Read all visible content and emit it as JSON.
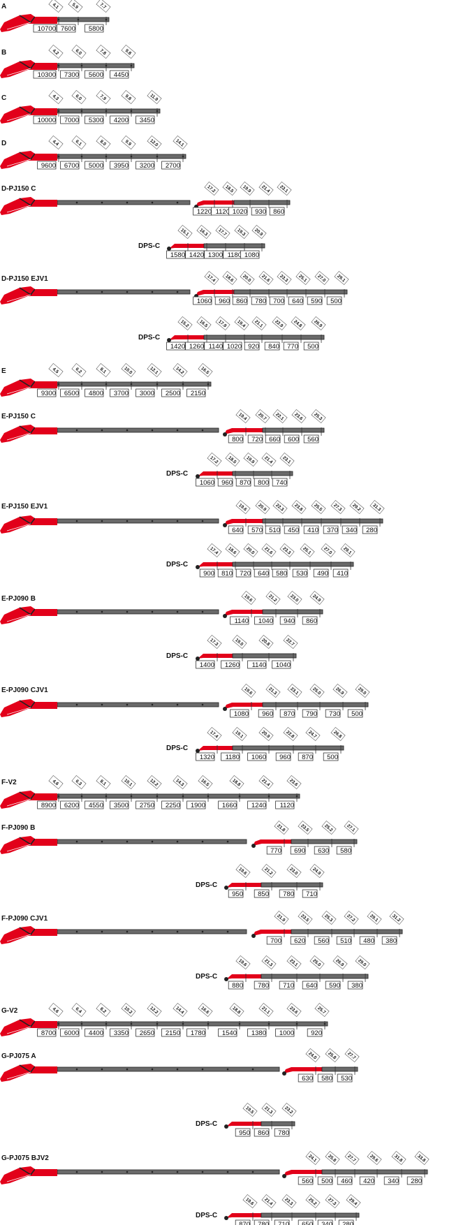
{
  "colors": {
    "boom_red": "#e2001a",
    "boom_dark": "#222222",
    "boom_grey": "#6a6a6a",
    "boom_light": "#dcdcdc",
    "tick": "#333333"
  },
  "diagrams": [
    {
      "id": "A",
      "label": "A",
      "kind": "main",
      "reach": [
        "4.1",
        "5.9",
        "7.7"
      ],
      "load": [
        "10700",
        "7600",
        "5800"
      ]
    },
    {
      "id": "B",
      "label": "B",
      "kind": "main",
      "reach": [
        "4.2",
        "6.0",
        "7.8",
        "9.8"
      ],
      "load": [
        "10300",
        "7300",
        "5600",
        "4450"
      ]
    },
    {
      "id": "C",
      "label": "C",
      "kind": "main",
      "reach": [
        "4.3",
        "6.0",
        "7.9",
        "9.8",
        "11.9"
      ],
      "load": [
        "10000",
        "7000",
        "5300",
        "4200",
        "3450"
      ]
    },
    {
      "id": "D",
      "label": "D",
      "kind": "main",
      "reach": [
        "4.4",
        "6.1",
        "8.0",
        "9.9",
        "12.0",
        "14.1"
      ],
      "load": [
        "9600",
        "6700",
        "5000",
        "3950",
        "3200",
        "2700"
      ]
    },
    {
      "id": "D-PJ150 C",
      "label": "D-PJ150 C",
      "kind": "jib",
      "reach": [
        "17.2",
        "18.5",
        "19.9",
        "21.4",
        "23.1"
      ],
      "load": [
        "1220",
        "1120",
        "1020",
        "930",
        "860"
      ]
    },
    {
      "id": "D-PJ150 C DPS-C",
      "label": "DPS-C",
      "kind": "dps",
      "reach": [
        "15.1",
        "16.3",
        "17.7",
        "19.3",
        "20.9"
      ],
      "load": [
        "1580",
        "1420",
        "1300",
        "1180",
        "1080"
      ]
    },
    {
      "id": "D-PJ150 EJV1",
      "label": "D-PJ150 EJV1",
      "kind": "jib",
      "reach": [
        "17.4",
        "18.6",
        "20.0",
        "21.6",
        "23.3",
        "25.1",
        "27.0",
        "29.1"
      ],
      "load": [
        "1060",
        "960",
        "860",
        "780",
        "700",
        "640",
        "590",
        "500"
      ]
    },
    {
      "id": "D-PJ150 EJV1 DPS-C",
      "label": "DPS-C",
      "kind": "dps",
      "reach": [
        "15.2",
        "16.5",
        "17.9",
        "19.4",
        "21.1",
        "22.9",
        "24.8",
        "26.9"
      ],
      "load": [
        "1420",
        "1260",
        "1140",
        "1020",
        "920",
        "840",
        "770",
        "500"
      ]
    },
    {
      "id": "E",
      "label": "E",
      "kind": "main",
      "reach": [
        "4.5",
        "6.2",
        "8.1",
        "10.0",
        "12.1",
        "14.2",
        "16.5"
      ],
      "load": [
        "9300",
        "6500",
        "4800",
        "3700",
        "3000",
        "2500",
        "2150"
      ]
    },
    {
      "id": "E-PJ150 C",
      "label": "E-PJ150 C",
      "kind": "jib",
      "reach": [
        "19.4",
        "20.7",
        "22.1",
        "23.6",
        "25.3"
      ],
      "load": [
        "800",
        "720",
        "660",
        "600",
        "560"
      ]
    },
    {
      "id": "E-PJ150 C DPS-C",
      "label": "DPS-C",
      "kind": "dps",
      "reach": [
        "17.2",
        "18.5",
        "19.9",
        "21.4",
        "23.1"
      ],
      "load": [
        "1060",
        "960",
        "870",
        "800",
        "740"
      ]
    },
    {
      "id": "E-PJ150 EJV1",
      "label": "E-PJ150 EJV1",
      "kind": "jib",
      "reach": [
        "19.6",
        "20.9",
        "22.3",
        "23.8",
        "25.5",
        "27.3",
        "29.2",
        "31.3"
      ],
      "load": [
        "640",
        "570",
        "510",
        "450",
        "410",
        "370",
        "340",
        "280"
      ]
    },
    {
      "id": "E-PJ150 EJV1 DPS-C",
      "label": "DPS-C",
      "kind": "dps",
      "reach": [
        "17.4",
        "18.6",
        "20.0",
        "21.6",
        "23.3",
        "25.1",
        "27.0",
        "29.1"
      ],
      "load": [
        "900",
        "810",
        "720",
        "640",
        "580",
        "530",
        "490",
        "410"
      ]
    },
    {
      "id": "E-PJ090 B",
      "label": "E-PJ090 B",
      "kind": "jib",
      "reach": [
        "19.6",
        "21.2",
        "23.0",
        "24.9"
      ],
      "load": [
        "1140",
        "1040",
        "940",
        "860"
      ]
    },
    {
      "id": "E-PJ090 B DPS-C",
      "label": "DPS-C",
      "kind": "dps",
      "reach": [
        "17.3",
        "19.0",
        "20.8",
        "22.7"
      ],
      "load": [
        "1400",
        "1260",
        "1140",
        "1040"
      ]
    },
    {
      "id": "E-PJ090 CJV1",
      "label": "E-PJ090 CJV1",
      "kind": "jib",
      "reach": [
        "19.6",
        "21.3",
        "23.1",
        "25.0",
        "26.9",
        "29.0"
      ],
      "load": [
        "1080",
        "960",
        "870",
        "790",
        "730",
        "500"
      ]
    },
    {
      "id": "E-PJ090 CJV1 DPS-C",
      "label": "DPS-C",
      "kind": "dps",
      "reach": [
        "17.4",
        "19.1",
        "20.9",
        "22.8",
        "24.7",
        "26.8"
      ],
      "load": [
        "1320",
        "1180",
        "1060",
        "960",
        "870",
        "500"
      ]
    },
    {
      "id": "F-V2",
      "label": "F-V2",
      "kind": "main",
      "reach": [
        "4.6",
        "6.3",
        "8.1",
        "10.1",
        "12.2",
        "14.3",
        "16.5",
        "18.8",
        "21.4",
        "23.6"
      ],
      "load": [
        "8900",
        "6200",
        "4550",
        "3500",
        "2750",
        "2250",
        "1900",
        "1660",
        "1240",
        "1120"
      ]
    },
    {
      "id": "F-PJ090 B",
      "label": "F-PJ090 B",
      "kind": "jib",
      "reach": [
        "21.8",
        "23.5",
        "25.2",
        "27.1"
      ],
      "load": [
        "770",
        "690",
        "630",
        "580"
      ]
    },
    {
      "id": "F-PJ090 B DPS-C",
      "label": "DPS-C",
      "kind": "dps",
      "reach": [
        "19.6",
        "21.2",
        "23.0",
        "24.9"
      ],
      "load": [
        "950",
        "850",
        "780",
        "710"
      ]
    },
    {
      "id": "F-PJ090 CJV1",
      "label": "F-PJ090 CJV1",
      "kind": "jib",
      "reach": [
        "21.9",
        "23.5",
        "25.3",
        "27.2",
        "29.1",
        "31.2"
      ],
      "load": [
        "700",
        "620",
        "560",
        "510",
        "480",
        "380"
      ]
    },
    {
      "id": "F-PJ090 CJV1 DPS-C",
      "label": "DPS-C",
      "kind": "dps",
      "reach": [
        "19.6",
        "21.3",
        "23.1",
        "25.0",
        "26.9",
        "29.0"
      ],
      "load": [
        "880",
        "780",
        "710",
        "640",
        "590",
        "380"
      ]
    },
    {
      "id": "G-V2",
      "label": "G-V2",
      "kind": "main",
      "reach": [
        "4.6",
        "6.4",
        "8.2",
        "10.2",
        "12.2",
        "14.4",
        "16.6",
        "18.8",
        "21.1",
        "23.6",
        "25.7"
      ],
      "load": [
        "8700",
        "6000",
        "4400",
        "3350",
        "2650",
        "2150",
        "1780",
        "1540",
        "1380",
        "1000",
        "920"
      ]
    },
    {
      "id": "G-PJ075 A",
      "label": "G-PJ075 A",
      "kind": "jib",
      "reach": [
        "24.0",
        "25.8",
        "27.7"
      ],
      "load": [
        "630",
        "580",
        "530"
      ]
    },
    {
      "id": "G-PJ075 A DPS-C",
      "label": "DPS-C",
      "kind": "dps",
      "reach": [
        "19.5",
        "21.3",
        "23.2"
      ],
      "load": [
        "950",
        "860",
        "780"
      ]
    },
    {
      "id": "G-PJ075 BJV2",
      "label": "G-PJ075 BJV2",
      "kind": "jib",
      "reach": [
        "24.1",
        "25.8",
        "27.7",
        "29.6",
        "31.8",
        "33.8"
      ],
      "load": [
        "560",
        "500",
        "460",
        "420",
        "340",
        "280"
      ]
    },
    {
      "id": "G-PJ075 BJV2 DPS-C",
      "label": "DPS-C",
      "kind": "dps",
      "reach": [
        "19.6",
        "21.4",
        "23.3",
        "25.2",
        "27.3",
        "29.4"
      ],
      "load": [
        "870",
        "780",
        "710",
        "650",
        "340",
        "280"
      ]
    }
  ]
}
